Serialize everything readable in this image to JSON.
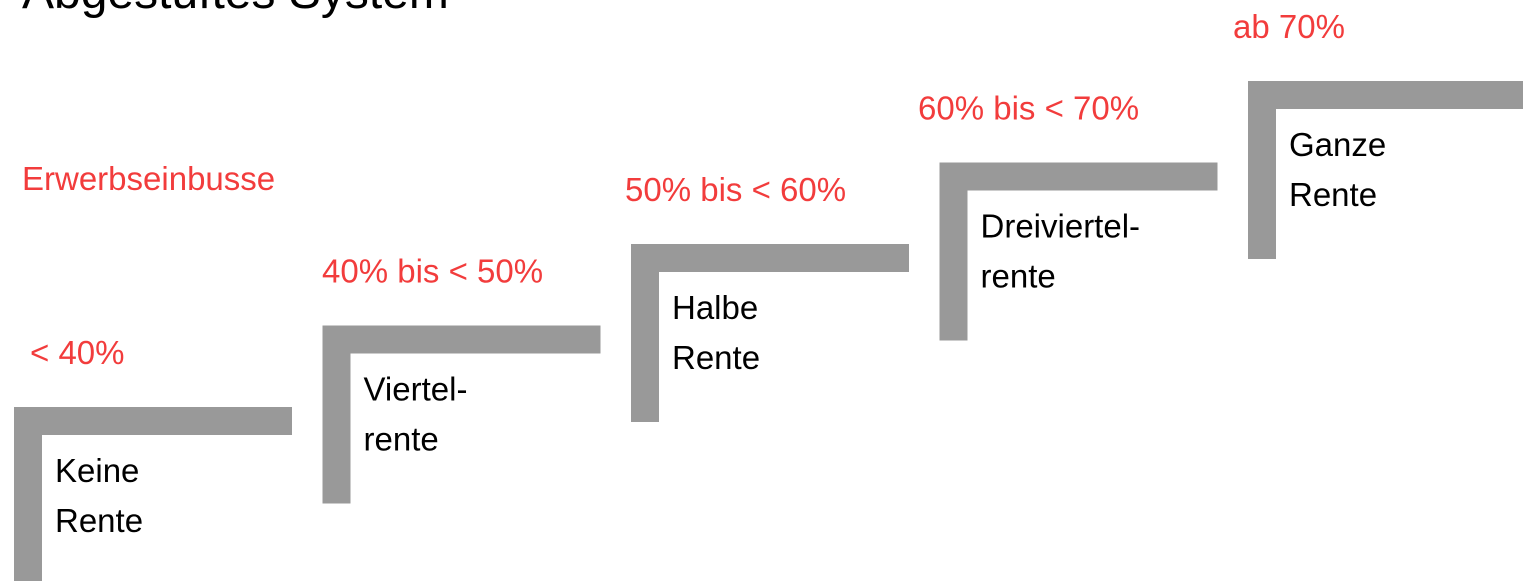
{
  "title": "Abgestuftes System",
  "label": "Erwerbseinbusse",
  "steps": [
    {
      "range": "< 40%",
      "lines": [
        "Keine",
        "Rente"
      ]
    },
    {
      "range": "40% bis < 50%",
      "lines": [
        "Viertel-",
        "rente"
      ]
    },
    {
      "range": "50% bis < 60%",
      "lines": [
        "Halbe",
        "Rente"
      ]
    },
    {
      "range": "60% bis < 70%",
      "lines": [
        "Dreiviertel-",
        "rente"
      ]
    },
    {
      "range": "ab 70%",
      "lines": [
        "Ganze",
        "Rente"
      ]
    }
  ]
}
